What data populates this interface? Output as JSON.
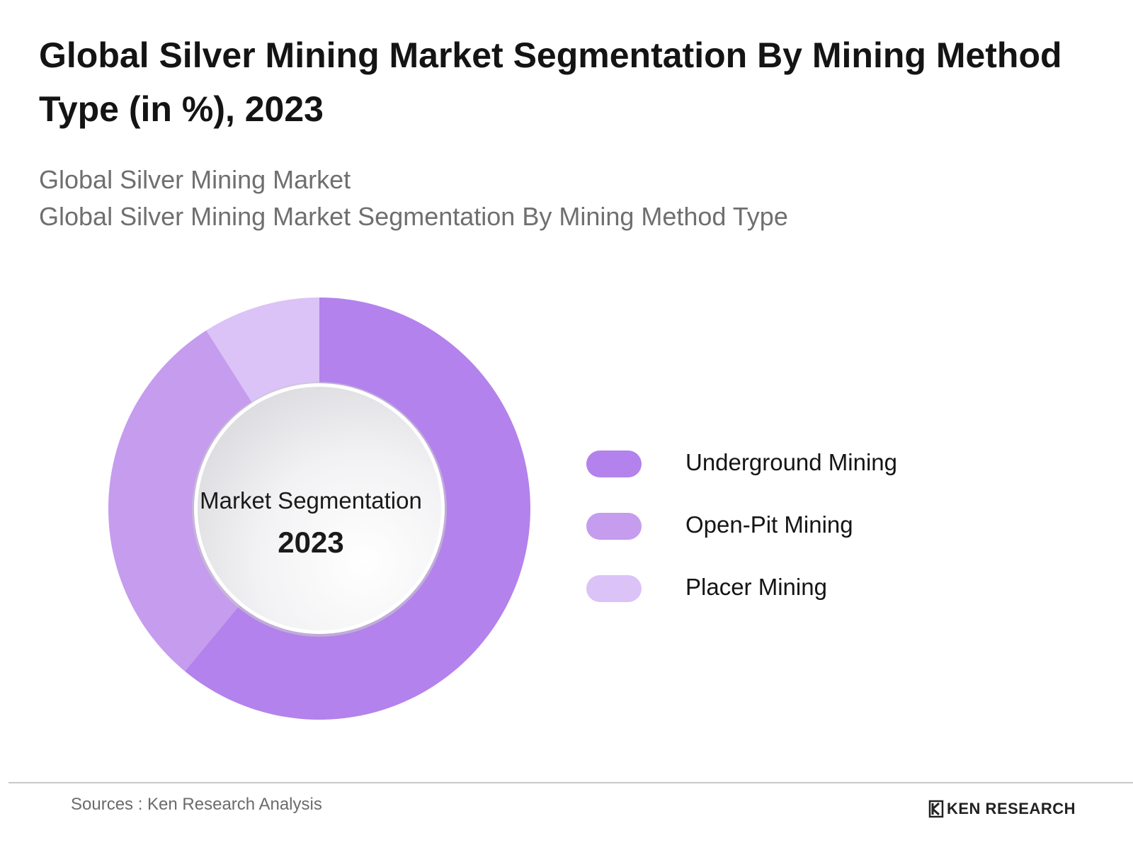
{
  "header": {
    "title": "Global Silver Mining Market Segmentation By Mining Method Type (in %), 2023",
    "subtitle_1": "Global Silver Mining Market",
    "subtitle_2": "Global Silver Mining Market Segmentation By Mining Method Type"
  },
  "center": {
    "label": "Market Segmentation",
    "year": "2023"
  },
  "colors": {
    "underground": "#b382ec",
    "open_pit": "#c59cee",
    "placer": "#dbc2f7"
  },
  "chart_data": {
    "type": "pie",
    "variant": "donut",
    "start_angle": "12 o'clock, clockwise",
    "categories": [
      "Underground Mining",
      "Open-Pit Mining",
      "Placer Mining"
    ],
    "values": [
      61,
      30,
      9
    ],
    "unit": "%",
    "legend_position": "right"
  },
  "footer": {
    "sources": "Sources : Ken Research Analysis",
    "brand": "KEN RESEARCH"
  }
}
